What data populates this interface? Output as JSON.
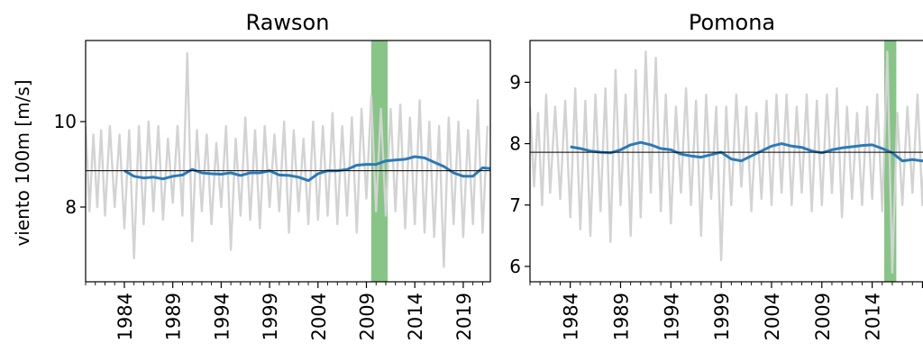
{
  "chart_data": [
    {
      "type": "line",
      "title": "Rawson",
      "ylabel": "viento 100m [m/s]",
      "xlim": [
        1980.0,
        2021.8
      ],
      "ylim": [
        6.25,
        11.9
      ],
      "yticks": [
        8,
        10
      ],
      "xticks": [
        1984,
        1989,
        1994,
        1999,
        2004,
        2009,
        2014,
        2019
      ],
      "mean_line": 8.85,
      "highlight": {
        "from": 2009.5,
        "to": 2011.2,
        "color": "#7fc27f"
      },
      "series": [
        {
          "role": "monthly",
          "color": "#d3d3d3",
          "x": [
            1980.0,
            1980.4,
            1980.8,
            1981.2,
            1981.6,
            1982.0,
            1982.5,
            1983.0,
            1983.5,
            1984.0,
            1984.5,
            1985.0,
            1985.5,
            1986.0,
            1986.5,
            1987.0,
            1987.5,
            1988.0,
            1988.5,
            1989.0,
            1989.5,
            1990.0,
            1990.5,
            1991.0,
            1991.5,
            1992.0,
            1992.5,
            1993.0,
            1993.5,
            1994.0,
            1994.5,
            1995.0,
            1995.5,
            1996.0,
            1996.5,
            1997.0,
            1997.5,
            1998.0,
            1998.5,
            1999.0,
            1999.5,
            2000.0,
            2000.5,
            2001.0,
            2001.5,
            2002.0,
            2002.5,
            2003.0,
            2003.5,
            2004.0,
            2004.5,
            2005.0,
            2005.5,
            2006.0,
            2006.5,
            2007.0,
            2007.5,
            2008.0,
            2008.5,
            2009.0,
            2009.5,
            2010.0,
            2010.5,
            2011.0,
            2011.5,
            2012.0,
            2012.5,
            2013.0,
            2013.5,
            2014.0,
            2014.5,
            2015.0,
            2015.5,
            2016.0,
            2016.5,
            2017.0,
            2017.5,
            2018.0,
            2018.5,
            2019.0,
            2019.5,
            2020.0,
            2020.5,
            2021.0,
            2021.5
          ],
          "y": [
            9.9,
            7.9,
            9.7,
            8.0,
            9.8,
            7.8,
            9.9,
            8.0,
            9.7,
            7.5,
            9.8,
            6.8,
            9.9,
            7.6,
            10.0,
            7.9,
            9.9,
            7.7,
            9.6,
            8.1,
            9.9,
            7.8,
            11.6,
            7.2,
            9.8,
            7.9,
            9.7,
            7.6,
            9.5,
            8.0,
            9.9,
            7.0,
            9.6,
            7.8,
            10.1,
            7.7,
            9.8,
            7.5,
            9.9,
            8.0,
            9.7,
            7.9,
            10.0,
            7.4,
            9.8,
            7.9,
            9.6,
            7.6,
            10.0,
            7.7,
            9.9,
            7.8,
            10.2,
            7.6,
            9.9,
            7.8,
            10.1,
            7.4,
            10.3,
            8.2,
            10.6,
            7.9,
            10.3,
            7.8,
            10.3,
            7.9,
            10.4,
            7.5,
            10.1,
            7.6,
            10.5,
            7.4,
            10.0,
            7.3,
            9.9,
            6.6,
            10.1,
            7.6,
            10.0,
            7.3,
            9.8,
            7.6,
            10.5,
            7.4,
            9.9
          ]
        },
        {
          "role": "running-mean",
          "color": "#2a7ab8",
          "x": [
            1984.0,
            1985.0,
            1986.0,
            1987.0,
            1988.0,
            1989.0,
            1990.0,
            1991.0,
            1992.0,
            1993.0,
            1994.0,
            1995.0,
            1996.0,
            1997.0,
            1998.0,
            1999.0,
            2000.0,
            2001.0,
            2002.0,
            2003.0,
            2004.0,
            2005.0,
            2006.0,
            2007.0,
            2008.0,
            2009.0,
            2010.0,
            2011.0,
            2012.0,
            2013.0,
            2014.0,
            2015.0,
            2016.0,
            2017.0,
            2018.0,
            2019.0,
            2020.0,
            2021.0,
            2021.8
          ],
          "y": [
            8.85,
            8.72,
            8.68,
            8.7,
            8.66,
            8.72,
            8.75,
            8.88,
            8.8,
            8.78,
            8.77,
            8.8,
            8.74,
            8.8,
            8.8,
            8.85,
            8.75,
            8.74,
            8.7,
            8.62,
            8.78,
            8.85,
            8.85,
            8.88,
            8.98,
            9.0,
            9.0,
            9.08,
            9.1,
            9.12,
            9.18,
            9.15,
            9.05,
            8.95,
            8.8,
            8.72,
            8.72,
            8.92,
            8.9
          ]
        }
      ]
    },
    {
      "type": "line",
      "title": "Pomona",
      "ylabel": "",
      "xlim": [
        1980.0,
        2021.2
      ],
      "ylim": [
        5.75,
        9.68
      ],
      "yticks": [
        6,
        7,
        8,
        9
      ],
      "xticks": [
        1984,
        1989,
        1994,
        1999,
        2004,
        2009,
        2014,
        2019
      ],
      "mean_line": 7.86,
      "highlight": {
        "from": 2015.2,
        "to": 2016.4,
        "color": "#7fc27f"
      },
      "series": [
        {
          "role": "monthly",
          "color": "#d3d3d3",
          "x": [
            1980.0,
            1980.4,
            1980.8,
            1981.2,
            1981.6,
            1982.0,
            1982.5,
            1983.0,
            1983.5,
            1984.0,
            1984.5,
            1985.0,
            1985.5,
            1986.0,
            1986.5,
            1987.0,
            1987.5,
            1988.0,
            1988.5,
            1989.0,
            1989.5,
            1990.0,
            1990.5,
            1991.0,
            1991.5,
            1992.0,
            1992.5,
            1993.0,
            1993.5,
            1994.0,
            1994.5,
            1995.0,
            1995.5,
            1996.0,
            1996.5,
            1997.0,
            1997.5,
            1998.0,
            1998.5,
            1999.0,
            1999.5,
            2000.0,
            2000.5,
            2001.0,
            2001.5,
            2002.0,
            2002.5,
            2003.0,
            2003.5,
            2004.0,
            2004.5,
            2005.0,
            2005.5,
            2006.0,
            2006.5,
            2007.0,
            2007.5,
            2008.0,
            2008.5,
            2009.0,
            2009.5,
            2010.0,
            2010.5,
            2011.0,
            2011.5,
            2012.0,
            2012.5,
            2013.0,
            2013.5,
            2014.0,
            2014.5,
            2015.0,
            2015.5,
            2016.0,
            2016.5,
            2017.0,
            2017.5,
            2018.0,
            2018.5,
            2019.0,
            2019.5,
            2020.0,
            2020.5,
            2021.0
          ],
          "y": [
            8.6,
            7.3,
            8.5,
            7.0,
            8.8,
            7.2,
            8.6,
            7.1,
            8.7,
            6.8,
            8.9,
            6.6,
            8.7,
            6.5,
            8.8,
            6.9,
            8.9,
            6.4,
            9.2,
            7.0,
            8.8,
            6.5,
            9.2,
            6.8,
            9.5,
            7.2,
            9.4,
            6.9,
            8.8,
            6.7,
            8.6,
            7.2,
            8.9,
            7.0,
            8.7,
            6.5,
            8.8,
            7.1,
            8.6,
            6.1,
            8.6,
            7.0,
            8.8,
            7.3,
            8.6,
            6.9,
            8.5,
            7.1,
            8.7,
            7.0,
            8.8,
            7.2,
            8.8,
            7.0,
            8.6,
            7.2,
            8.8,
            6.9,
            8.7,
            7.0,
            8.8,
            7.2,
            8.9,
            6.8,
            8.6,
            7.1,
            8.5,
            7.0,
            8.6,
            7.1,
            8.8,
            6.9,
            9.5,
            5.9,
            8.5,
            7.0,
            8.6,
            7.2,
            8.8,
            7.0,
            8.7,
            7.3,
            8.6,
            7.1
          ]
        },
        {
          "role": "running-mean",
          "color": "#2a7ab8",
          "x": [
            1984.0,
            1985.0,
            1986.0,
            1987.0,
            1988.0,
            1989.0,
            1990.0,
            1991.0,
            1992.0,
            1993.0,
            1994.0,
            1995.0,
            1996.0,
            1997.0,
            1998.0,
            1999.0,
            2000.0,
            2001.0,
            2002.0,
            2003.0,
            2004.0,
            2005.0,
            2006.0,
            2007.0,
            2008.0,
            2009.0,
            2010.0,
            2011.0,
            2012.0,
            2013.0,
            2014.0,
            2015.0,
            2016.0,
            2017.0,
            2018.0,
            2019.0,
            2020.0,
            2021.0
          ],
          "y": [
            7.95,
            7.92,
            7.88,
            7.86,
            7.85,
            7.9,
            7.98,
            8.02,
            7.98,
            7.92,
            7.9,
            7.83,
            7.8,
            7.78,
            7.82,
            7.86,
            7.75,
            7.72,
            7.8,
            7.88,
            7.96,
            8.0,
            7.96,
            7.94,
            7.88,
            7.85,
            7.9,
            7.93,
            7.95,
            7.97,
            7.98,
            7.92,
            7.85,
            7.72,
            7.74,
            7.72,
            7.76,
            7.8
          ]
        }
      ]
    }
  ]
}
